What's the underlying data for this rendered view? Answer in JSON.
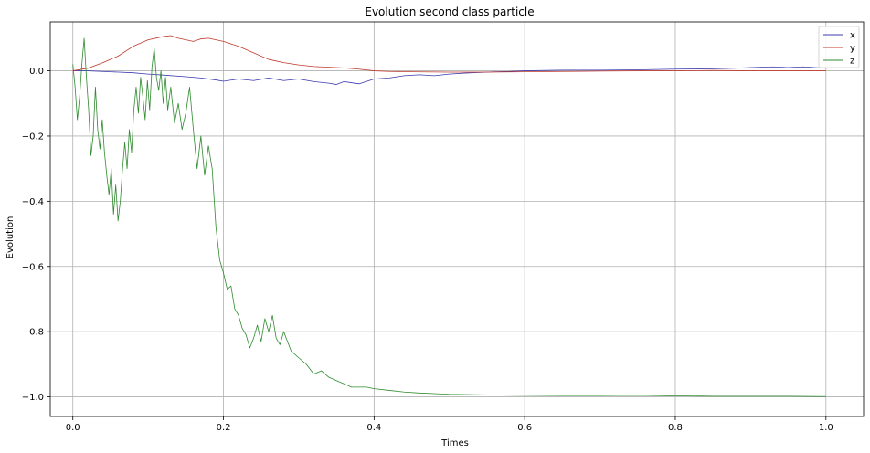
{
  "chart_data": {
    "type": "line",
    "title": "Evolution second class particle",
    "xlabel": "Times",
    "ylabel": "Evolution",
    "xlim": [
      -0.03,
      1.05
    ],
    "ylim": [
      -1.06,
      0.15
    ],
    "xticks": [
      0.0,
      0.2,
      0.4,
      0.6,
      0.8,
      1.0
    ],
    "xtick_labels": [
      "0.0",
      "0.2",
      "0.4",
      "0.6",
      "0.8",
      "1.0"
    ],
    "yticks": [
      0.0,
      -0.2,
      -0.4,
      -0.6,
      -0.8,
      -1.0
    ],
    "ytick_labels": [
      "0.0",
      "−0.2",
      "−0.4",
      "−0.6",
      "−0.8",
      "−1.0"
    ],
    "grid": true,
    "legend_position": "top-right",
    "series": [
      {
        "name": "x",
        "color": "#3b3bb0",
        "points": [
          [
            0.0,
            0.0
          ],
          [
            0.02,
            0.0
          ],
          [
            0.05,
            -0.003
          ],
          [
            0.08,
            -0.006
          ],
          [
            0.1,
            -0.01
          ],
          [
            0.12,
            -0.013
          ],
          [
            0.15,
            -0.018
          ],
          [
            0.17,
            -0.022
          ],
          [
            0.19,
            -0.028
          ],
          [
            0.2,
            -0.032
          ],
          [
            0.22,
            -0.025
          ],
          [
            0.24,
            -0.03
          ],
          [
            0.26,
            -0.022
          ],
          [
            0.28,
            -0.03
          ],
          [
            0.3,
            -0.025
          ],
          [
            0.32,
            -0.033
          ],
          [
            0.34,
            -0.038
          ],
          [
            0.35,
            -0.042
          ],
          [
            0.36,
            -0.033
          ],
          [
            0.38,
            -0.04
          ],
          [
            0.4,
            -0.025
          ],
          [
            0.42,
            -0.022
          ],
          [
            0.44,
            -0.015
          ],
          [
            0.46,
            -0.012
          ],
          [
            0.48,
            -0.015
          ],
          [
            0.5,
            -0.01
          ],
          [
            0.52,
            -0.007
          ],
          [
            0.54,
            -0.005
          ],
          [
            0.56,
            -0.003
          ],
          [
            0.58,
            -0.002
          ],
          [
            0.6,
            0.0
          ],
          [
            0.65,
            0.002
          ],
          [
            0.7,
            0.002
          ],
          [
            0.75,
            0.003
          ],
          [
            0.8,
            0.005
          ],
          [
            0.85,
            0.006
          ],
          [
            0.88,
            0.008
          ],
          [
            0.9,
            0.01
          ],
          [
            0.93,
            0.012
          ],
          [
            0.95,
            0.01
          ],
          [
            0.97,
            0.012
          ],
          [
            1.0,
            0.008
          ]
        ]
      },
      {
        "name": "y",
        "color": "#c0392b",
        "points": [
          [
            0.0,
            0.0
          ],
          [
            0.02,
            0.008
          ],
          [
            0.04,
            0.025
          ],
          [
            0.06,
            0.045
          ],
          [
            0.08,
            0.075
          ],
          [
            0.1,
            0.095
          ],
          [
            0.12,
            0.105
          ],
          [
            0.13,
            0.108
          ],
          [
            0.14,
            0.1
          ],
          [
            0.15,
            0.095
          ],
          [
            0.16,
            0.09
          ],
          [
            0.17,
            0.098
          ],
          [
            0.18,
            0.1
          ],
          [
            0.19,
            0.095
          ],
          [
            0.2,
            0.09
          ],
          [
            0.22,
            0.075
          ],
          [
            0.24,
            0.055
          ],
          [
            0.26,
            0.035
          ],
          [
            0.28,
            0.025
          ],
          [
            0.3,
            0.018
          ],
          [
            0.32,
            0.013
          ],
          [
            0.34,
            0.011
          ],
          [
            0.36,
            0.009
          ],
          [
            0.38,
            0.005
          ],
          [
            0.4,
            0.0
          ],
          [
            0.42,
            -0.002
          ],
          [
            0.45,
            -0.003
          ],
          [
            0.5,
            -0.004
          ],
          [
            0.55,
            -0.004
          ],
          [
            0.6,
            -0.003
          ],
          [
            0.65,
            -0.002
          ],
          [
            0.7,
            -0.001
          ],
          [
            0.75,
            0.0
          ],
          [
            0.8,
            0.0
          ],
          [
            0.85,
            0.001
          ],
          [
            0.9,
            0.0
          ],
          [
            0.95,
            0.0
          ],
          [
            1.0,
            0.0
          ]
        ]
      },
      {
        "name": "z",
        "color": "#2e8b2e",
        "points": [
          [
            0.0,
            0.02
          ],
          [
            0.003,
            -0.05
          ],
          [
            0.006,
            -0.15
          ],
          [
            0.009,
            -0.08
          ],
          [
            0.012,
            0.02
          ],
          [
            0.015,
            0.1
          ],
          [
            0.018,
            -0.02
          ],
          [
            0.021,
            -0.12
          ],
          [
            0.024,
            -0.26
          ],
          [
            0.027,
            -0.2
          ],
          [
            0.03,
            -0.05
          ],
          [
            0.033,
            -0.18
          ],
          [
            0.036,
            -0.24
          ],
          [
            0.039,
            -0.15
          ],
          [
            0.042,
            -0.25
          ],
          [
            0.045,
            -0.32
          ],
          [
            0.048,
            -0.38
          ],
          [
            0.051,
            -0.3
          ],
          [
            0.054,
            -0.44
          ],
          [
            0.057,
            -0.35
          ],
          [
            0.06,
            -0.46
          ],
          [
            0.063,
            -0.4
          ],
          [
            0.066,
            -0.3
          ],
          [
            0.069,
            -0.22
          ],
          [
            0.072,
            -0.3
          ],
          [
            0.075,
            -0.18
          ],
          [
            0.078,
            -0.25
          ],
          [
            0.081,
            -0.12
          ],
          [
            0.084,
            -0.05
          ],
          [
            0.087,
            -0.13
          ],
          [
            0.09,
            -0.02
          ],
          [
            0.093,
            -0.08
          ],
          [
            0.096,
            -0.15
          ],
          [
            0.099,
            -0.03
          ],
          [
            0.102,
            -0.12
          ],
          [
            0.105,
            0.01
          ],
          [
            0.108,
            0.07
          ],
          [
            0.111,
            -0.02
          ],
          [
            0.114,
            -0.06
          ],
          [
            0.117,
            0.0
          ],
          [
            0.12,
            -0.1
          ],
          [
            0.123,
            -0.02
          ],
          [
            0.126,
            -0.12
          ],
          [
            0.13,
            -0.05
          ],
          [
            0.135,
            -0.16
          ],
          [
            0.14,
            -0.1
          ],
          [
            0.145,
            -0.18
          ],
          [
            0.15,
            -0.13
          ],
          [
            0.155,
            -0.05
          ],
          [
            0.16,
            -0.18
          ],
          [
            0.165,
            -0.3
          ],
          [
            0.17,
            -0.2
          ],
          [
            0.175,
            -0.32
          ],
          [
            0.18,
            -0.23
          ],
          [
            0.185,
            -0.3
          ],
          [
            0.19,
            -0.48
          ],
          [
            0.195,
            -0.58
          ],
          [
            0.2,
            -0.62
          ],
          [
            0.205,
            -0.67
          ],
          [
            0.21,
            -0.66
          ],
          [
            0.215,
            -0.73
          ],
          [
            0.22,
            -0.75
          ],
          [
            0.225,
            -0.79
          ],
          [
            0.23,
            -0.81
          ],
          [
            0.235,
            -0.85
          ],
          [
            0.24,
            -0.82
          ],
          [
            0.245,
            -0.78
          ],
          [
            0.25,
            -0.83
          ],
          [
            0.255,
            -0.76
          ],
          [
            0.26,
            -0.8
          ],
          [
            0.265,
            -0.75
          ],
          [
            0.27,
            -0.82
          ],
          [
            0.275,
            -0.84
          ],
          [
            0.28,
            -0.8
          ],
          [
            0.285,
            -0.83
          ],
          [
            0.29,
            -0.86
          ],
          [
            0.3,
            -0.88
          ],
          [
            0.31,
            -0.9
          ],
          [
            0.32,
            -0.93
          ],
          [
            0.33,
            -0.92
          ],
          [
            0.34,
            -0.94
          ],
          [
            0.35,
            -0.95
          ],
          [
            0.36,
            -0.96
          ],
          [
            0.37,
            -0.97
          ],
          [
            0.38,
            -0.97
          ],
          [
            0.39,
            -0.97
          ],
          [
            0.4,
            -0.975
          ],
          [
            0.42,
            -0.98
          ],
          [
            0.44,
            -0.985
          ],
          [
            0.46,
            -0.988
          ],
          [
            0.48,
            -0.99
          ],
          [
            0.5,
            -0.992
          ],
          [
            0.55,
            -0.994
          ],
          [
            0.6,
            -0.995
          ],
          [
            0.65,
            -0.996
          ],
          [
            0.7,
            -0.996
          ],
          [
            0.75,
            -0.995
          ],
          [
            0.8,
            -0.997
          ],
          [
            0.85,
            -0.998
          ],
          [
            0.9,
            -0.998
          ],
          [
            0.95,
            -0.998
          ],
          [
            1.0,
            -0.999
          ]
        ]
      }
    ]
  }
}
